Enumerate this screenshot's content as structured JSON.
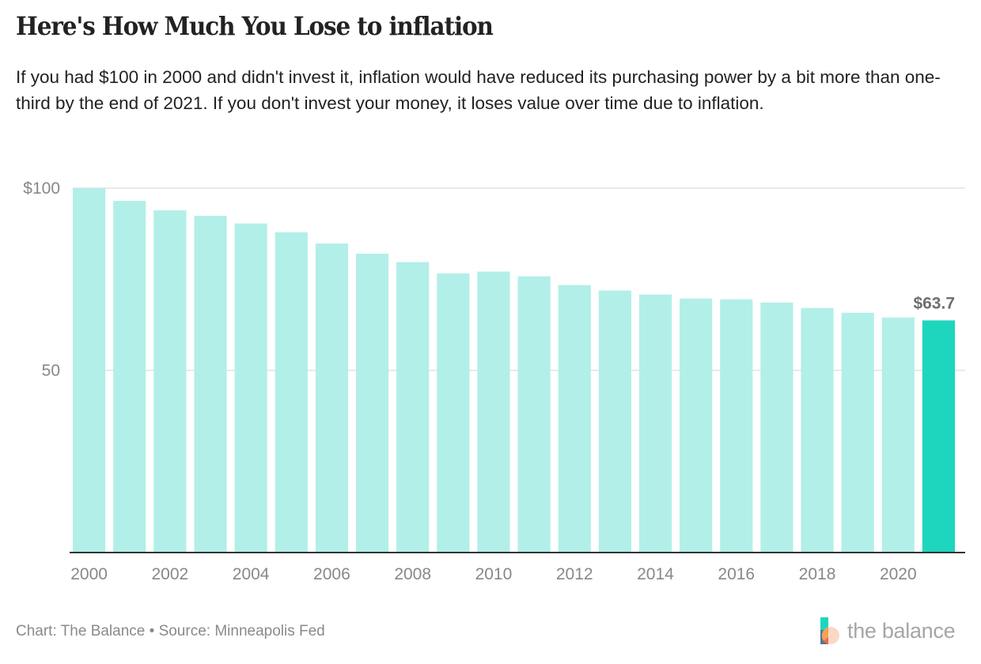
{
  "header": {
    "title": "Here's How Much You Lose to inflation",
    "subtitle": "If you had $100 in 2000 and didn't invest it, inflation would have reduced its purchasing power by a bit more than one-third by the end of 2021. If you don't invest your money, it loses value over time due to inflation."
  },
  "footer": {
    "credit": "Chart: The Balance • Source: Minneapolis Fed",
    "brand_name": "the balance",
    "brand_icon": "the-balance-logo-icon"
  },
  "colors": {
    "bar": "#b2efe8",
    "highlight_bar": "#1dd6bd",
    "gridline": "#e2e2e2",
    "axis": "#333333"
  },
  "chart_data": {
    "type": "bar",
    "title": "Here's How Much You Lose to inflation",
    "xlabel": "",
    "ylabel": "",
    "categories": [
      "2000",
      "2001",
      "2002",
      "2003",
      "2004",
      "2005",
      "2006",
      "2007",
      "2008",
      "2009",
      "2010",
      "2011",
      "2012",
      "2013",
      "2014",
      "2015",
      "2016",
      "2017",
      "2018",
      "2019",
      "2020",
      "2021"
    ],
    "values": [
      100,
      96.5,
      93.9,
      92.4,
      90.3,
      87.9,
      84.8,
      82.0,
      79.7,
      76.6,
      77.1,
      75.8,
      73.4,
      71.9,
      70.8,
      69.7,
      69.5,
      68.6,
      67.1,
      65.8,
      64.5,
      63.7
    ],
    "ylim": [
      0,
      100
    ],
    "y_ticks": [
      {
        "value": 50,
        "label": "50"
      },
      {
        "value": 100,
        "label": "$100"
      }
    ],
    "x_tick_labels": [
      "2000",
      "2002",
      "2004",
      "2006",
      "2008",
      "2010",
      "2012",
      "2014",
      "2016",
      "2018",
      "2020"
    ],
    "highlight": {
      "category": "2021",
      "label": "$63.7"
    },
    "grid": true,
    "legend": "none"
  }
}
